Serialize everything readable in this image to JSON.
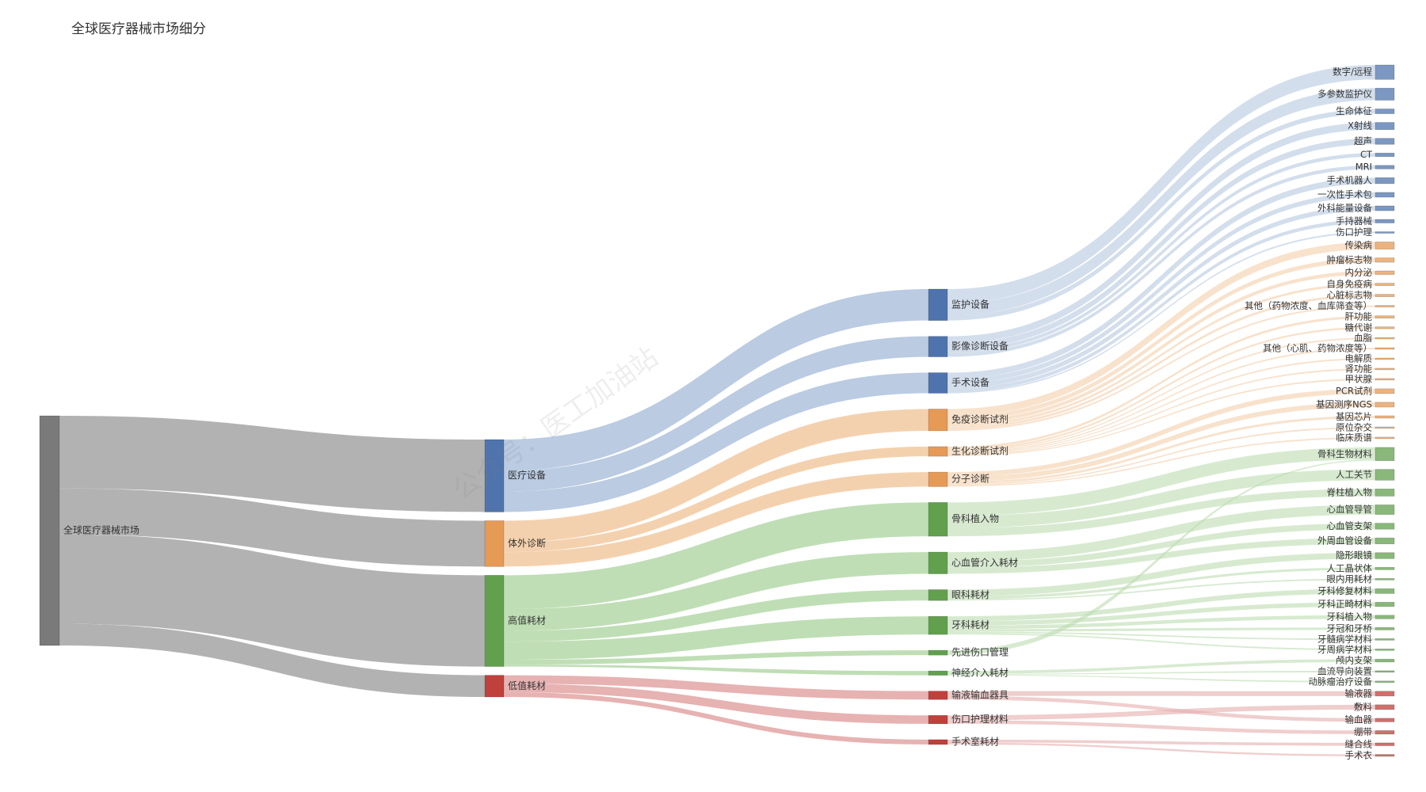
{
  "watermark": "公众号：医工加油站",
  "colors": {
    "root": "#7a7a7a",
    "root_link": "#b2b2b2",
    "medical": "#4f74ad",
    "medical_link": "#b6c8e0",
    "ivd": "#e59a56",
    "ivd_link": "#f3cfaa",
    "highvalue": "#62a04e",
    "highvalue_link": "#bcdcb1",
    "lowvalue": "#c0403c",
    "lowvalue_link": "#e6aeae"
  },
  "chart_data": {
    "type": "sankey",
    "title": "全球医疗器械市场细分",
    "columns": [
      [
        {
          "id": "root",
          "label": "全球医疗器械市场",
          "group": "root"
        }
      ],
      [
        {
          "id": "medical",
          "label": "医疗设备",
          "group": "medical"
        },
        {
          "id": "ivd",
          "label": "体外诊断",
          "group": "ivd"
        },
        {
          "id": "highvalue",
          "label": "高值耗材",
          "group": "highvalue"
        },
        {
          "id": "lowvalue",
          "label": "低值耗材",
          "group": "lowvalue"
        }
      ],
      [
        {
          "id": "monitor",
          "label": "监护设备",
          "group": "medical"
        },
        {
          "id": "imaging",
          "label": "影像诊断设备",
          "group": "medical"
        },
        {
          "id": "surgical",
          "label": "手术设备",
          "group": "medical"
        },
        {
          "id": "immuno",
          "label": "免疫诊断试剂",
          "group": "ivd"
        },
        {
          "id": "biochem",
          "label": "生化诊断试剂",
          "group": "ivd"
        },
        {
          "id": "molecular",
          "label": "分子诊断",
          "group": "ivd"
        },
        {
          "id": "ortho",
          "label": "骨科植入物",
          "group": "highvalue"
        },
        {
          "id": "cardio",
          "label": "心血管介入耗材",
          "group": "highvalue"
        },
        {
          "id": "ophth",
          "label": "眼科耗材",
          "group": "highvalue"
        },
        {
          "id": "dental",
          "label": "牙科耗材",
          "group": "highvalue"
        },
        {
          "id": "wound_adv",
          "label": "先进伤口管理",
          "group": "highvalue"
        },
        {
          "id": "neuro",
          "label": "神经介入耗材",
          "group": "highvalue"
        },
        {
          "id": "infusion",
          "label": "输液输血器具",
          "group": "lowvalue"
        },
        {
          "id": "woundcare",
          "label": "伤口护理材料",
          "group": "lowvalue"
        },
        {
          "id": "orroom",
          "label": "手术室耗材",
          "group": "lowvalue"
        }
      ],
      [
        {
          "id": "l1",
          "label": "数字/远程",
          "group": "medical",
          "parent": "monitor"
        },
        {
          "id": "l2",
          "label": "多参数监护仪",
          "group": "medical",
          "parent": "monitor"
        },
        {
          "id": "l3",
          "label": "生命体征",
          "group": "medical",
          "parent": "monitor"
        },
        {
          "id": "l4",
          "label": "X射线",
          "group": "medical",
          "parent": "imaging"
        },
        {
          "id": "l5",
          "label": "超声",
          "group": "medical",
          "parent": "imaging"
        },
        {
          "id": "l6",
          "label": "CT",
          "group": "medical",
          "parent": "imaging"
        },
        {
          "id": "l7",
          "label": "MRI",
          "group": "medical",
          "parent": "imaging"
        },
        {
          "id": "l8",
          "label": "手术机器人",
          "group": "medical",
          "parent": "surgical"
        },
        {
          "id": "l9",
          "label": "一次性手术包",
          "group": "medical",
          "parent": "surgical"
        },
        {
          "id": "l10",
          "label": "外科能量设备",
          "group": "medical",
          "parent": "surgical"
        },
        {
          "id": "l11",
          "label": "手持器械",
          "group": "medical",
          "parent": "surgical"
        },
        {
          "id": "l12",
          "label": "伤口护理",
          "group": "medical",
          "parent": "surgical"
        },
        {
          "id": "l13",
          "label": "传染病",
          "group": "ivd",
          "parent": "immuno"
        },
        {
          "id": "l14",
          "label": "肿瘤标志物",
          "group": "ivd",
          "parent": "immuno"
        },
        {
          "id": "l15",
          "label": "内分泌",
          "group": "ivd",
          "parent": "immuno"
        },
        {
          "id": "l16",
          "label": "自身免疫病",
          "group": "ivd",
          "parent": "immuno"
        },
        {
          "id": "l17",
          "label": "心脏标志物",
          "group": "ivd",
          "parent": "immuno"
        },
        {
          "id": "l18",
          "label": "其他（药物浓度、血库筛查等）",
          "group": "ivd",
          "parent": "immuno"
        },
        {
          "id": "l19",
          "label": "肝功能",
          "group": "ivd",
          "parent": "biochem"
        },
        {
          "id": "l20",
          "label": "糖代谢",
          "group": "ivd",
          "parent": "biochem"
        },
        {
          "id": "l21",
          "label": "血脂",
          "group": "ivd",
          "parent": "biochem"
        },
        {
          "id": "l22",
          "label": "其他（心肌、药物浓度等）",
          "group": "ivd",
          "parent": "biochem"
        },
        {
          "id": "l23",
          "label": "电解质",
          "group": "ivd",
          "parent": "biochem"
        },
        {
          "id": "l24",
          "label": "肾功能",
          "group": "ivd",
          "parent": "biochem"
        },
        {
          "id": "l25",
          "label": "甲状腺",
          "group": "ivd",
          "parent": "biochem"
        },
        {
          "id": "l26",
          "label": "PCR试剂",
          "group": "ivd",
          "parent": "molecular"
        },
        {
          "id": "l27",
          "label": "基因测序NGS",
          "group": "ivd",
          "parent": "molecular"
        },
        {
          "id": "l28",
          "label": "基因芯片",
          "group": "ivd",
          "parent": "molecular"
        },
        {
          "id": "l29",
          "label": "原位杂交",
          "group": "ivd",
          "parent": "molecular"
        },
        {
          "id": "l30",
          "label": "临床质谱",
          "group": "ivd",
          "parent": "molecular"
        },
        {
          "id": "l31",
          "label": "骨科生物材料",
          "group": "highvalue",
          "parent": "ortho"
        },
        {
          "id": "l32",
          "label": "人工关节",
          "group": "highvalue",
          "parent": "ortho"
        },
        {
          "id": "l33",
          "label": "脊柱植入物",
          "group": "highvalue",
          "parent": "ortho"
        },
        {
          "id": "l34",
          "label": "心血管导管",
          "group": "highvalue",
          "parent": "cardio"
        },
        {
          "id": "l35",
          "label": "心血管支架",
          "group": "highvalue",
          "parent": "cardio"
        },
        {
          "id": "l36",
          "label": "外周血管设备",
          "group": "highvalue",
          "parent": "cardio"
        },
        {
          "id": "l37",
          "label": "隐形眼镜",
          "group": "highvalue",
          "parent": "ophth"
        },
        {
          "id": "l38",
          "label": "人工晶状体",
          "group": "highvalue",
          "parent": "ophth"
        },
        {
          "id": "l39",
          "label": "眼内用耗材",
          "group": "highvalue",
          "parent": "ophth"
        },
        {
          "id": "l40",
          "label": "牙科修复材料",
          "group": "highvalue",
          "parent": "dental"
        },
        {
          "id": "l41",
          "label": "牙科正畸材料",
          "group": "highvalue",
          "parent": "dental"
        },
        {
          "id": "l42",
          "label": "牙科植入物",
          "group": "highvalue",
          "parent": "dental"
        },
        {
          "id": "l43",
          "label": "牙冠和牙桥",
          "group": "highvalue",
          "parent": "dental"
        },
        {
          "id": "l44",
          "label": "牙髓病学材料",
          "group": "highvalue",
          "parent": "dental"
        },
        {
          "id": "l45",
          "label": "牙周病学材料",
          "group": "highvalue",
          "parent": "dental"
        },
        {
          "id": "l46",
          "label": "颅内支架",
          "group": "highvalue",
          "parent": "neuro"
        },
        {
          "id": "l47",
          "label": "血流导向装置",
          "group": "highvalue",
          "parent": "neuro"
        },
        {
          "id": "l48",
          "label": "动脉瘤治疗设备",
          "group": "highvalue",
          "parent": "neuro"
        },
        {
          "id": "l49",
          "label": "输液器",
          "group": "lowvalue",
          "parent": "infusion"
        },
        {
          "id": "l50",
          "label": "敷料",
          "group": "lowvalue",
          "parent": "woundcare"
        },
        {
          "id": "l51",
          "label": "输血器",
          "group": "lowvalue",
          "parent": "infusion"
        },
        {
          "id": "l52",
          "label": "绷带",
          "group": "lowvalue",
          "parent": "woundcare"
        },
        {
          "id": "l53",
          "label": "缝合线",
          "group": "lowvalue",
          "parent": "orroom"
        },
        {
          "id": "l54",
          "label": "手术衣",
          "group": "lowvalue",
          "parent": "orroom"
        }
      ]
    ],
    "links": [
      {
        "s": "root",
        "t": "medical",
        "v": 30
      },
      {
        "s": "root",
        "t": "ivd",
        "v": 19
      },
      {
        "s": "root",
        "t": "highvalue",
        "v": 37
      },
      {
        "s": "root",
        "t": "lowvalue",
        "v": 9
      },
      {
        "s": "medical",
        "t": "monitor",
        "v": 13
      },
      {
        "s": "medical",
        "t": "imaging",
        "v": 8.5
      },
      {
        "s": "medical",
        "t": "surgical",
        "v": 8.5
      },
      {
        "s": "ivd",
        "t": "immuno",
        "v": 9
      },
      {
        "s": "ivd",
        "t": "biochem",
        "v": 4
      },
      {
        "s": "ivd",
        "t": "molecular",
        "v": 6
      },
      {
        "s": "highvalue",
        "t": "ortho",
        "v": 14
      },
      {
        "s": "highvalue",
        "t": "cardio",
        "v": 9
      },
      {
        "s": "highvalue",
        "t": "ophth",
        "v": 4.5
      },
      {
        "s": "highvalue",
        "t": "dental",
        "v": 7.5
      },
      {
        "s": "highvalue",
        "t": "wound_adv",
        "v": 2
      },
      {
        "s": "highvalue",
        "t": "neuro",
        "v": 0.8
      },
      {
        "s": "lowvalue",
        "t": "infusion",
        "v": 3.5
      },
      {
        "s": "lowvalue",
        "t": "woundcare",
        "v": 3.5
      },
      {
        "s": "lowvalue",
        "t": "orroom",
        "v": 2
      },
      {
        "s": "monitor",
        "t": "l1",
        "v": 6
      },
      {
        "s": "monitor",
        "t": "l2",
        "v": 5
      },
      {
        "s": "monitor",
        "t": "l3",
        "v": 2
      },
      {
        "s": "imaging",
        "t": "l4",
        "v": 3
      },
      {
        "s": "imaging",
        "t": "l5",
        "v": 2.5
      },
      {
        "s": "imaging",
        "t": "l6",
        "v": 1.5
      },
      {
        "s": "imaging",
        "t": "l7",
        "v": 1.5
      },
      {
        "s": "surgical",
        "t": "l8",
        "v": 2.5
      },
      {
        "s": "surgical",
        "t": "l9",
        "v": 2
      },
      {
        "s": "surgical",
        "t": "l10",
        "v": 2
      },
      {
        "s": "surgical",
        "t": "l11",
        "v": 1.5
      },
      {
        "s": "surgical",
        "t": "l12",
        "v": 0.5
      },
      {
        "s": "immuno",
        "t": "l13",
        "v": 3
      },
      {
        "s": "immuno",
        "t": "l14",
        "v": 1.8
      },
      {
        "s": "immuno",
        "t": "l15",
        "v": 1.5
      },
      {
        "s": "immuno",
        "t": "l16",
        "v": 1
      },
      {
        "s": "immuno",
        "t": "l17",
        "v": 1
      },
      {
        "s": "immuno",
        "t": "l18",
        "v": 0.7
      },
      {
        "s": "biochem",
        "t": "l19",
        "v": 1
      },
      {
        "s": "biochem",
        "t": "l20",
        "v": 0.8
      },
      {
        "s": "biochem",
        "t": "l21",
        "v": 0.5
      },
      {
        "s": "biochem",
        "t": "l22",
        "v": 0.5
      },
      {
        "s": "biochem",
        "t": "l23",
        "v": 0.4
      },
      {
        "s": "biochem",
        "t": "l24",
        "v": 0.4
      },
      {
        "s": "biochem",
        "t": "l25",
        "v": 0.4
      },
      {
        "s": "molecular",
        "t": "l26",
        "v": 2
      },
      {
        "s": "molecular",
        "t": "l27",
        "v": 2
      },
      {
        "s": "molecular",
        "t": "l28",
        "v": 1
      },
      {
        "s": "molecular",
        "t": "l29",
        "v": 0.5
      },
      {
        "s": "molecular",
        "t": "l30",
        "v": 0.5
      },
      {
        "s": "ortho",
        "t": "l31",
        "v": 5
      },
      {
        "s": "ortho",
        "t": "l32",
        "v": 4.5
      },
      {
        "s": "ortho",
        "t": "l33",
        "v": 3
      },
      {
        "s": "wound_adv",
        "t": "l31",
        "v": 0.5
      },
      {
        "s": "cardio",
        "t": "l34",
        "v": 4
      },
      {
        "s": "cardio",
        "t": "l35",
        "v": 2.5
      },
      {
        "s": "cardio",
        "t": "l36",
        "v": 2.5
      },
      {
        "s": "ophth",
        "t": "l37",
        "v": 2.5
      },
      {
        "s": "ophth",
        "t": "l38",
        "v": 1
      },
      {
        "s": "ophth",
        "t": "l39",
        "v": 0.5
      },
      {
        "s": "dental",
        "t": "l40",
        "v": 2
      },
      {
        "s": "dental",
        "t": "l41",
        "v": 1.8
      },
      {
        "s": "dental",
        "t": "l42",
        "v": 1.5
      },
      {
        "s": "dental",
        "t": "l43",
        "v": 1
      },
      {
        "s": "dental",
        "t": "l44",
        "v": 0.6
      },
      {
        "s": "dental",
        "t": "l45",
        "v": 0.6
      },
      {
        "s": "neuro",
        "t": "l46",
        "v": 1.2
      },
      {
        "s": "neuro",
        "t": "l47",
        "v": 0.3
      },
      {
        "s": "neuro",
        "t": "l48",
        "v": 0.3
      },
      {
        "s": "infusion",
        "t": "l49",
        "v": 2
      },
      {
        "s": "woundcare",
        "t": "l50",
        "v": 2
      },
      {
        "s": "infusion",
        "t": "l51",
        "v": 1.5
      },
      {
        "s": "woundcare",
        "t": "l52",
        "v": 1.5
      },
      {
        "s": "orroom",
        "t": "l53",
        "v": 1.2
      },
      {
        "s": "orroom",
        "t": "l54",
        "v": 0.8
      }
    ]
  }
}
